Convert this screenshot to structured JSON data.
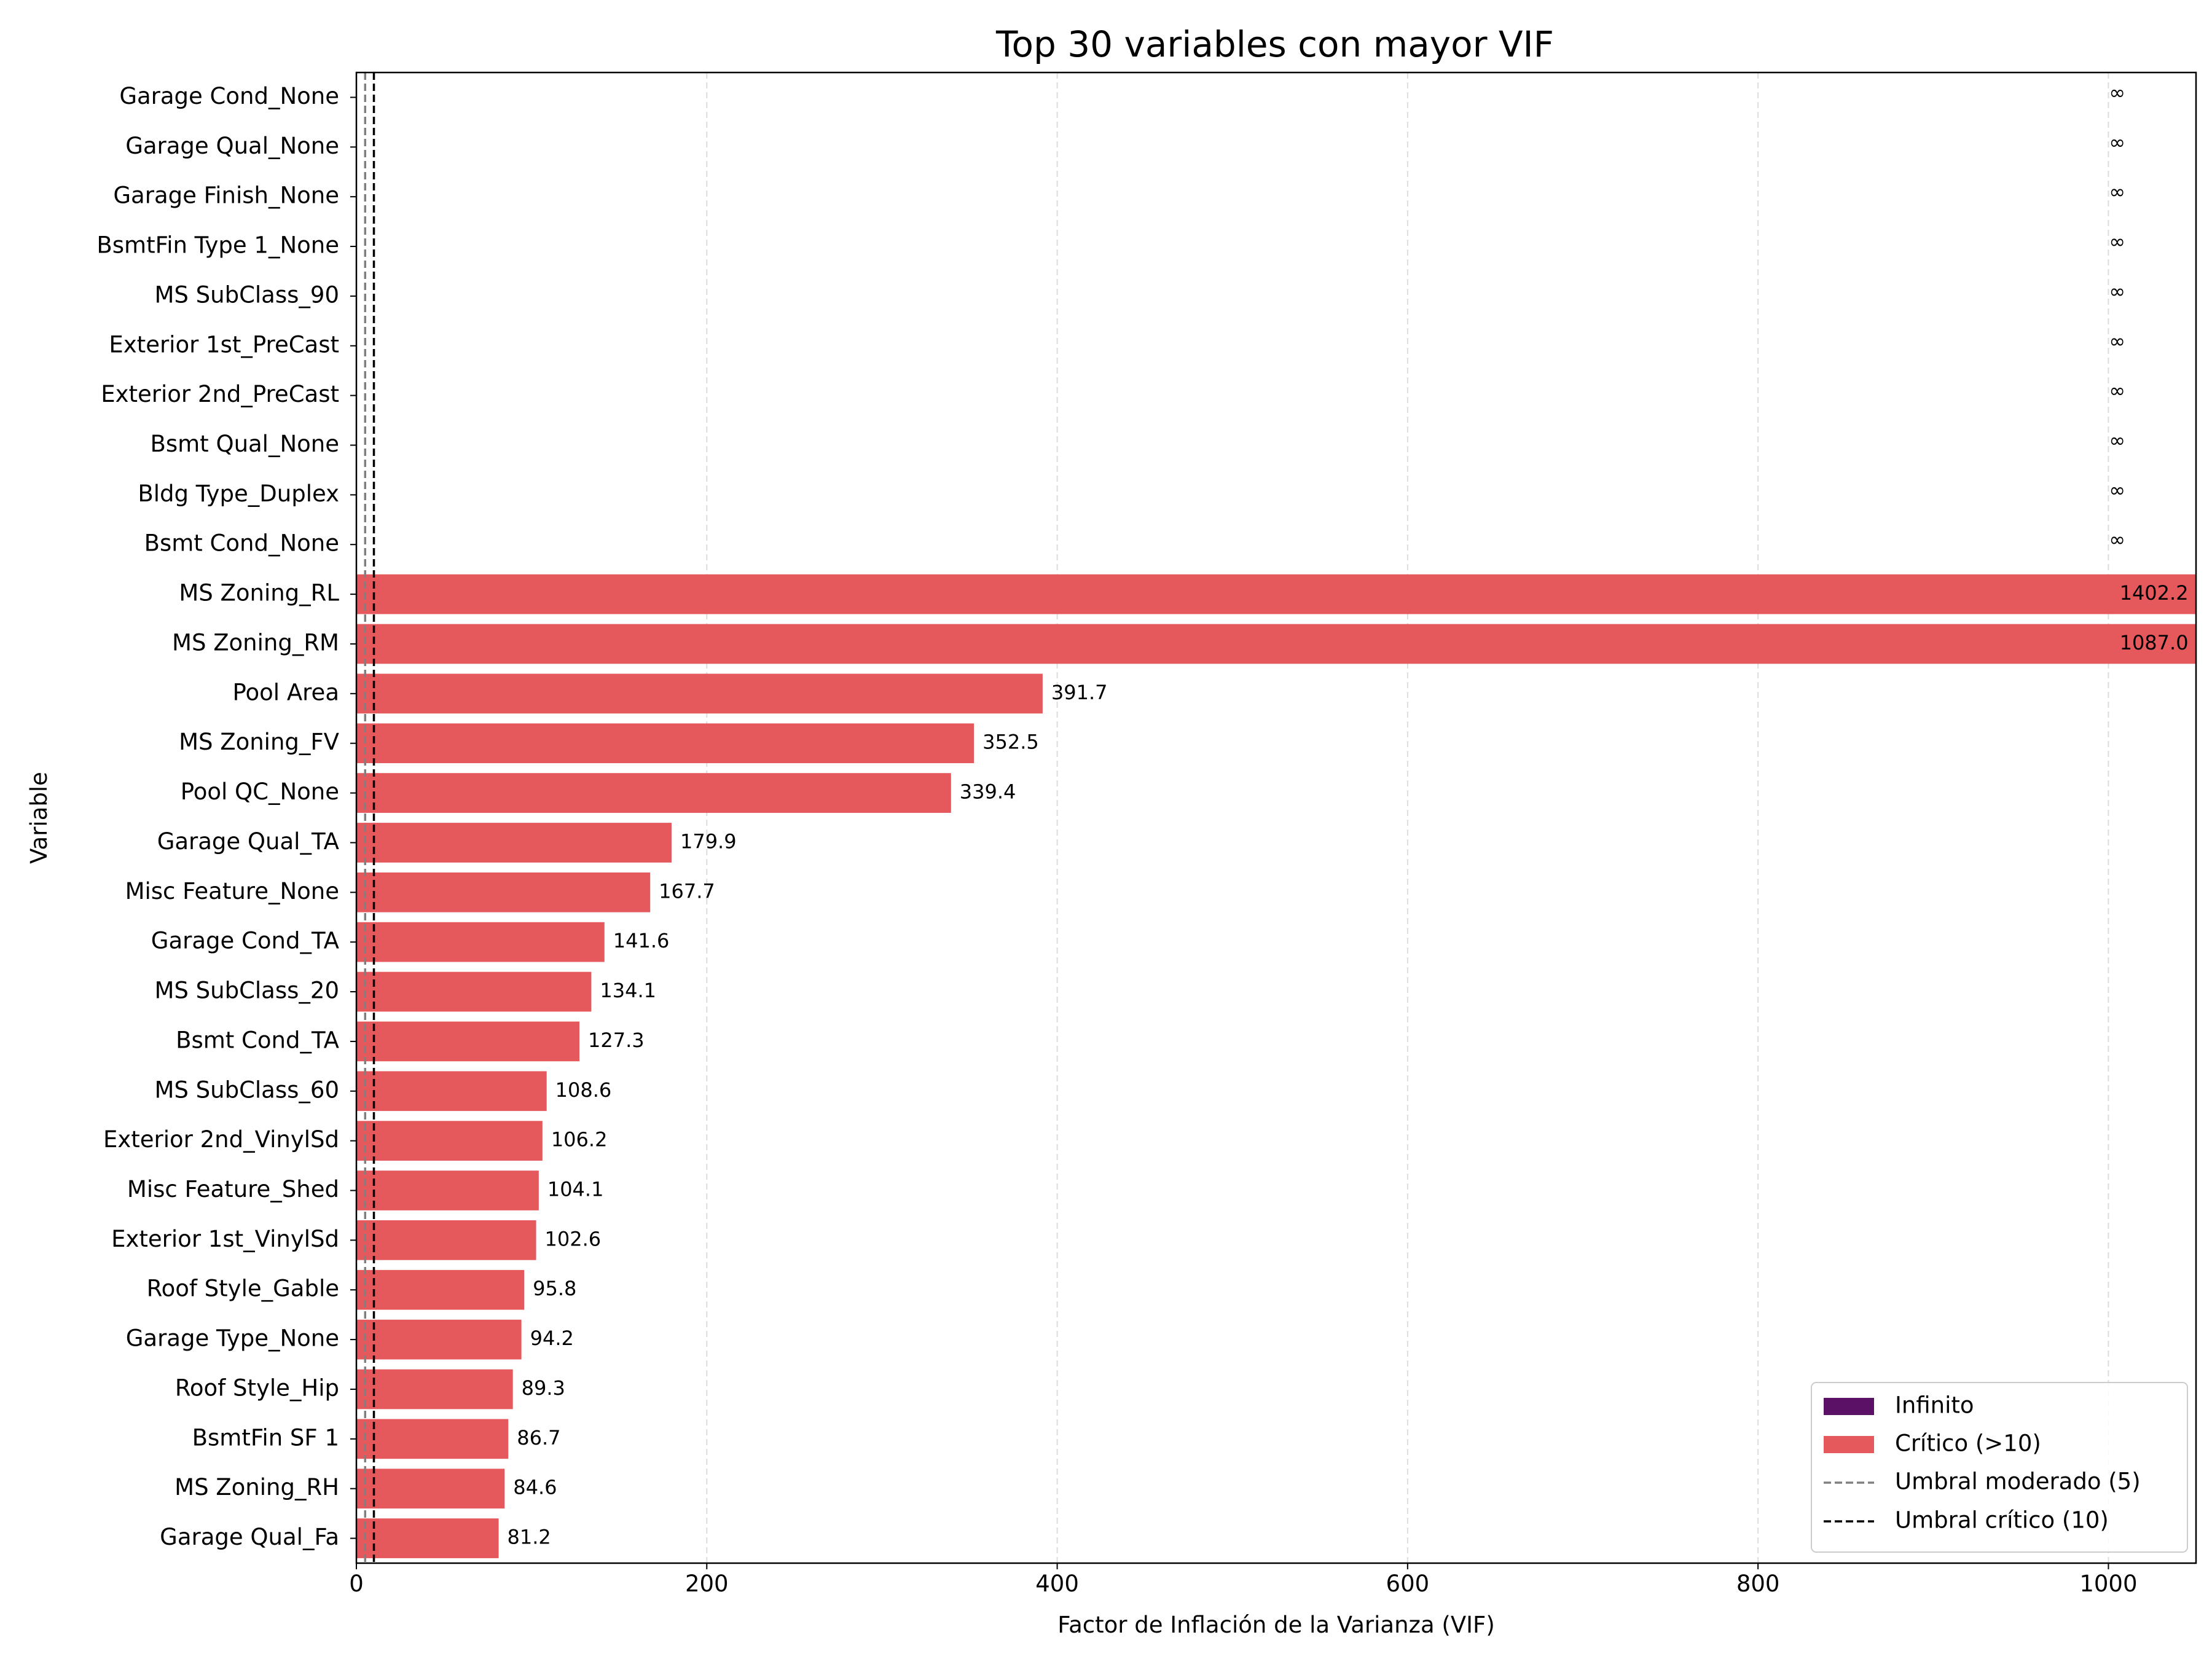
{
  "chart_data": {
    "type": "bar",
    "orientation": "horizontal",
    "title": "Top 30 variables con mayor VIF",
    "xlabel": "Factor de Inflación de la Varianza (VIF)",
    "ylabel": "Variable",
    "xlim": [
      0,
      1050
    ],
    "xticks": [
      0,
      200,
      400,
      600,
      800,
      1000
    ],
    "xtick_labels": [
      "0",
      "200",
      "400",
      "600",
      "800",
      "1000"
    ],
    "grid": "x dashed",
    "infinite_marker": "∞",
    "categories": [
      "Garage Cond_None",
      "Garage Qual_None",
      "Garage Finish_None",
      "BsmtFin Type 1_None",
      "MS SubClass_90",
      "Exterior 1st_PreCast",
      "Exterior 2nd_PreCast",
      "Bsmt Qual_None",
      "Bldg Type_Duplex",
      "Bsmt Cond_None",
      "MS Zoning_RL",
      "MS Zoning_RM",
      "Pool Area",
      "MS Zoning_FV",
      "Pool QC_None",
      "Garage Qual_TA",
      "Misc Feature_None",
      "Garage Cond_TA",
      "MS SubClass_20",
      "Bsmt Cond_TA",
      "MS SubClass_60",
      "Exterior 2nd_VinylSd",
      "Misc Feature_Shed",
      "Exterior 1st_VinylSd",
      "Roof Style_Gable",
      "Garage Type_None",
      "Roof Style_Hip",
      "BsmtFin SF 1",
      "MS Zoning_RH",
      "Garage Qual_Fa"
    ],
    "values": [
      "inf",
      "inf",
      "inf",
      "inf",
      "inf",
      "inf",
      "inf",
      "inf",
      "inf",
      "inf",
      1402.2,
      1087.0,
      391.7,
      352.5,
      339.4,
      179.9,
      167.7,
      141.6,
      134.1,
      127.3,
      108.6,
      106.2,
      104.1,
      102.6,
      95.8,
      94.2,
      89.3,
      86.7,
      84.6,
      81.2
    ],
    "value_labels": [
      "∞",
      "∞",
      "∞",
      "∞",
      "∞",
      "∞",
      "∞",
      "∞",
      "∞",
      "∞",
      "1402.2",
      "1087.0",
      "391.7",
      "352.5",
      "339.4",
      "179.9",
      "167.7",
      "141.6",
      "134.1",
      "127.3",
      "108.6",
      "106.2",
      "104.1",
      "102.6",
      "95.8",
      "94.2",
      "89.3",
      "86.7",
      "84.6",
      "81.2"
    ],
    "thresholds": [
      {
        "name": "Umbral moderado (5)",
        "value": 5,
        "style": "dashed",
        "color": "#808080"
      },
      {
        "name": "Umbral crítico (10)",
        "value": 10,
        "style": "dashed",
        "color": "#000000"
      }
    ],
    "colors": {
      "infinite": "#5b1165",
      "critical": "#e5585c"
    },
    "legend": {
      "position": "lower-right",
      "entries": [
        "Infinito",
        "Crítico (>10)",
        "Umbral moderado (5)",
        "Umbral crítico (10)"
      ]
    }
  }
}
